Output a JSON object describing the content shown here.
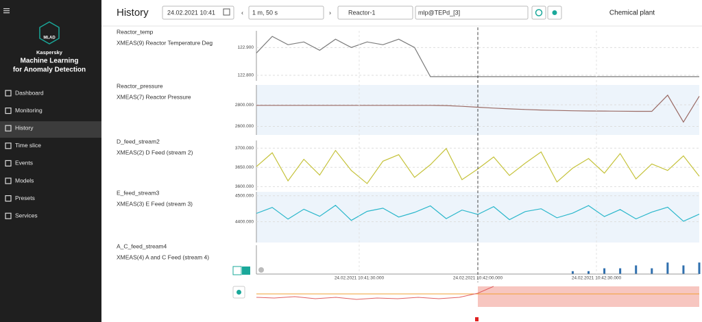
{
  "header": {
    "title": "History",
    "date": "24.02.2021 10:41",
    "period": "1 m, 50 s",
    "asset": "Reactor-1",
    "model": "mlp@TEPd_[3]",
    "site": "Chemical plant"
  },
  "sidebar": {
    "logo": "MLAD",
    "brand": "Kaspersky",
    "product_line1": "Machine Learning",
    "product_line2": "for Anomaly Detection",
    "menu": [
      "Dashboard",
      "Monitoring",
      "History",
      "Time slice",
      "Events",
      "Models",
      "Presets",
      "Services"
    ]
  },
  "chart_data": {
    "type": "line",
    "x": [
      "2021-02-24T10:41:04",
      "2021-02-24T10:41:08",
      "2021-02-24T10:41:12",
      "2021-02-24T10:41:16",
      "2021-02-24T10:41:20",
      "2021-02-24T10:41:24",
      "2021-02-24T10:41:28",
      "2021-02-24T10:41:32",
      "2021-02-24T10:41:36",
      "2021-02-24T10:41:40",
      "2021-02-24T10:41:44",
      "2021-02-24T10:41:48",
      "2021-02-24T10:41:52",
      "2021-02-24T10:41:56",
      "2021-02-24T10:42:00",
      "2021-02-24T10:42:04",
      "2021-02-24T10:42:08",
      "2021-02-24T10:42:12",
      "2021-02-24T10:42:16",
      "2021-02-24T10:42:20",
      "2021-02-24T10:42:24",
      "2021-02-24T10:42:28",
      "2021-02-24T10:42:32",
      "2021-02-24T10:42:36",
      "2021-02-24T10:42:40",
      "2021-02-24T10:42:44",
      "2021-02-24T10:42:48",
      "2021-02-24T10:42:52",
      "2021-02-24T10:42:56"
    ],
    "xlim": [
      "2021-02-24T10:41:04",
      "2021-02-24T10:42:56"
    ],
    "xticks": [
      {
        "value": "2021-02-24T10:41:30",
        "label": "24.02.2021 10:41:30.000"
      },
      {
        "value": "2021-02-24T10:42:00",
        "label": "24.02.2021 10:42:00.000"
      },
      {
        "value": "2021-02-24T10:42:30",
        "label": "24.02.2021 10:42:30.000"
      }
    ],
    "cursor": "2021-02-24T10:42:00",
    "grid": true,
    "panels": [
      {
        "type": "line",
        "title": "Reactor_temp",
        "subtitle": "XMEAS(9) Reactor Temperature Deg",
        "color": "#7a7a7a",
        "shaded": false,
        "ylim": [
          122.78,
          122.96
        ],
        "yticks": [
          {
            "value": 122.8,
            "label": "122.800"
          },
          {
            "value": 122.9,
            "label": "122.900"
          }
        ],
        "values": [
          122.88,
          122.94,
          122.91,
          122.92,
          122.89,
          122.93,
          122.9,
          122.92,
          122.91,
          122.93,
          122.9,
          122.795,
          122.795,
          122.795,
          122.795,
          122.795,
          122.795,
          122.795,
          122.795,
          122.795,
          122.795,
          122.795,
          122.795,
          122.795,
          122.795,
          122.795,
          122.795,
          122.795,
          122.795
        ]
      },
      {
        "type": "line",
        "title": "Reactor_pressure",
        "subtitle": "XMEAS(7) Reactor Pressure",
        "color": "#9a6a64",
        "shaded": true,
        "ylim": [
          2520,
          2985
        ],
        "yticks": [
          {
            "value": 2600,
            "label": "2600.000"
          },
          {
            "value": 2800,
            "label": "2800.000"
          }
        ],
        "values": [
          2795,
          2795,
          2795,
          2795,
          2795,
          2795,
          2795,
          2795,
          2795,
          2795,
          2795,
          2795,
          2793,
          2786,
          2778,
          2770,
          2763,
          2757,
          2752,
          2748,
          2745,
          2743,
          2742,
          2741,
          2740,
          2740,
          2890,
          2640,
          2880
        ]
      },
      {
        "type": "line",
        "title": "D_feed_stream2",
        "subtitle": "XMEAS(2) D Feed (stream 2)",
        "color": "#c5c23a",
        "shaded": false,
        "ylim": [
          3590,
          3720
        ],
        "yticks": [
          {
            "value": 3600,
            "label": "3600.000"
          },
          {
            "value": 3650,
            "label": "3650.000"
          },
          {
            "value": 3700,
            "label": "3700.000"
          }
        ],
        "values": [
          3652,
          3688,
          3615,
          3671,
          3630,
          3694,
          3642,
          3608,
          3666,
          3683,
          3624,
          3657,
          3699,
          3618,
          3646,
          3677,
          3629,
          3661,
          3690,
          3612,
          3648,
          3673,
          3635,
          3686,
          3620,
          3659,
          3642,
          3680,
          3627
        ]
      },
      {
        "type": "line",
        "title": "E_feed_stream3",
        "subtitle": "XMEAS(3) E Feed (stream 3)",
        "color": "#2ab7cb",
        "shaded": true,
        "ylim": [
          4320,
          4515
        ],
        "yticks": [
          {
            "value": 4400,
            "label": "4400.000"
          },
          {
            "value": 4500,
            "label": "4500.000"
          }
        ],
        "values": [
          4432,
          4455,
          4410,
          4448,
          4421,
          4463,
          4405,
          4440,
          4452,
          4418,
          4436,
          4461,
          4412,
          4445,
          4428,
          4458,
          4408,
          4439,
          4450,
          4415,
          4433,
          4462,
          4420,
          4447,
          4411,
          4437,
          4456,
          4402,
          4429
        ]
      },
      {
        "type": "bar",
        "title": "A_C_feed_stream4",
        "subtitle": "XMEAS(4) A and C Feed (stream 4)",
        "color": "#2f6fae",
        "shaded": false,
        "ylim": [
          0,
          10
        ],
        "yticks": [],
        "values": [
          0,
          0,
          0,
          0,
          0,
          0,
          0,
          0,
          0,
          0,
          0,
          0,
          0,
          0,
          0,
          0,
          0,
          0,
          0,
          0,
          1,
          1,
          2,
          2,
          3,
          2,
          4,
          3,
          4
        ]
      }
    ]
  }
}
